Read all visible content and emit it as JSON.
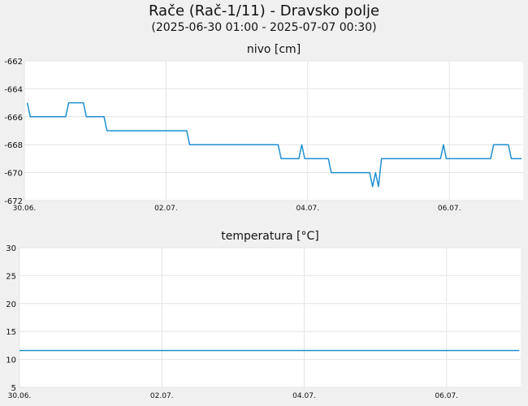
{
  "title": "Rače (Rač-1/11) - Dravsko polje",
  "subtitle": "(2025-06-30 01:00 - 2025-07-07 00:30)",
  "colors": {
    "series": "#1f8fd1",
    "grid": "#e4e4e4",
    "plot_bg": "#ffffff",
    "page_bg": "#f0f0f0"
  },
  "chart_data": [
    {
      "type": "line",
      "title": "nivo [cm]",
      "xlim": [
        "2025-06-30 00:00",
        "2025-07-07 01:00"
      ],
      "ylim": [
        -672,
        -662
      ],
      "yticks": [
        -662,
        -664,
        -666,
        -668,
        -670,
        -672
      ],
      "xticks": [
        {
          "label": "30.06.",
          "x": "2025-06-30 00:00"
        },
        {
          "label": "02.07.",
          "x": "2025-07-02 00:00"
        },
        {
          "label": "04.07.",
          "x": "2025-07-04 00:00"
        },
        {
          "label": "06.07.",
          "x": "2025-07-06 00:00"
        }
      ],
      "grid": true,
      "series": [
        {
          "x": [
            "2025-06-30 01:00",
            "2025-06-30 02:00",
            "2025-06-30 14:00",
            "2025-06-30 15:00",
            "2025-06-30 20:00",
            "2025-06-30 21:00",
            "2025-07-01 02:00",
            "2025-07-01 03:00",
            "2025-07-01 04:00",
            "2025-07-02 07:00",
            "2025-07-02 08:00",
            "2025-07-03 14:00",
            "2025-07-03 15:00",
            "2025-07-03 21:00",
            "2025-07-03 22:00",
            "2025-07-03 23:00",
            "2025-07-04 00:00",
            "2025-07-04 07:00",
            "2025-07-04 08:00",
            "2025-07-04 21:00",
            "2025-07-04 22:00",
            "2025-07-04 23:00",
            "2025-07-05 00:00",
            "2025-07-05 01:00",
            "2025-07-05 02:00",
            "2025-07-05 21:00",
            "2025-07-05 22:00",
            "2025-07-05 23:00",
            "2025-07-06 00:00",
            "2025-07-06 14:00",
            "2025-07-06 15:00",
            "2025-07-06 20:00",
            "2025-07-06 21:00",
            "2025-07-07 00:30"
          ],
          "values": [
            -665,
            -666,
            -666,
            -665,
            -665,
            -666,
            -666,
            -666,
            -667,
            -667,
            -668,
            -668,
            -669,
            -669,
            -668,
            -669,
            -669,
            -669,
            -670,
            -670,
            -671,
            -670,
            -671,
            -669,
            -669,
            -669,
            -668,
            -669,
            -669,
            -669,
            -668,
            -668,
            -669,
            -669
          ]
        }
      ]
    },
    {
      "type": "line",
      "title": "temperatura [°C]",
      "xlim": [
        "2025-06-30 00:00",
        "2025-07-07 01:00"
      ],
      "ylim": [
        5,
        30
      ],
      "yticks": [
        30,
        25,
        20,
        15,
        10,
        5
      ],
      "xticks": [
        {
          "label": "30.06.",
          "x": "2025-06-30 00:00"
        },
        {
          "label": "02.07.",
          "x": "2025-07-02 00:00"
        },
        {
          "label": "04.07.",
          "x": "2025-07-04 00:00"
        },
        {
          "label": "06.07.",
          "x": "2025-07-06 00:00"
        }
      ],
      "grid": true,
      "series": [
        {
          "x": [
            "2025-06-30 00:00",
            "2025-07-07 00:30"
          ],
          "values": [
            11.6,
            11.6
          ]
        }
      ]
    }
  ]
}
